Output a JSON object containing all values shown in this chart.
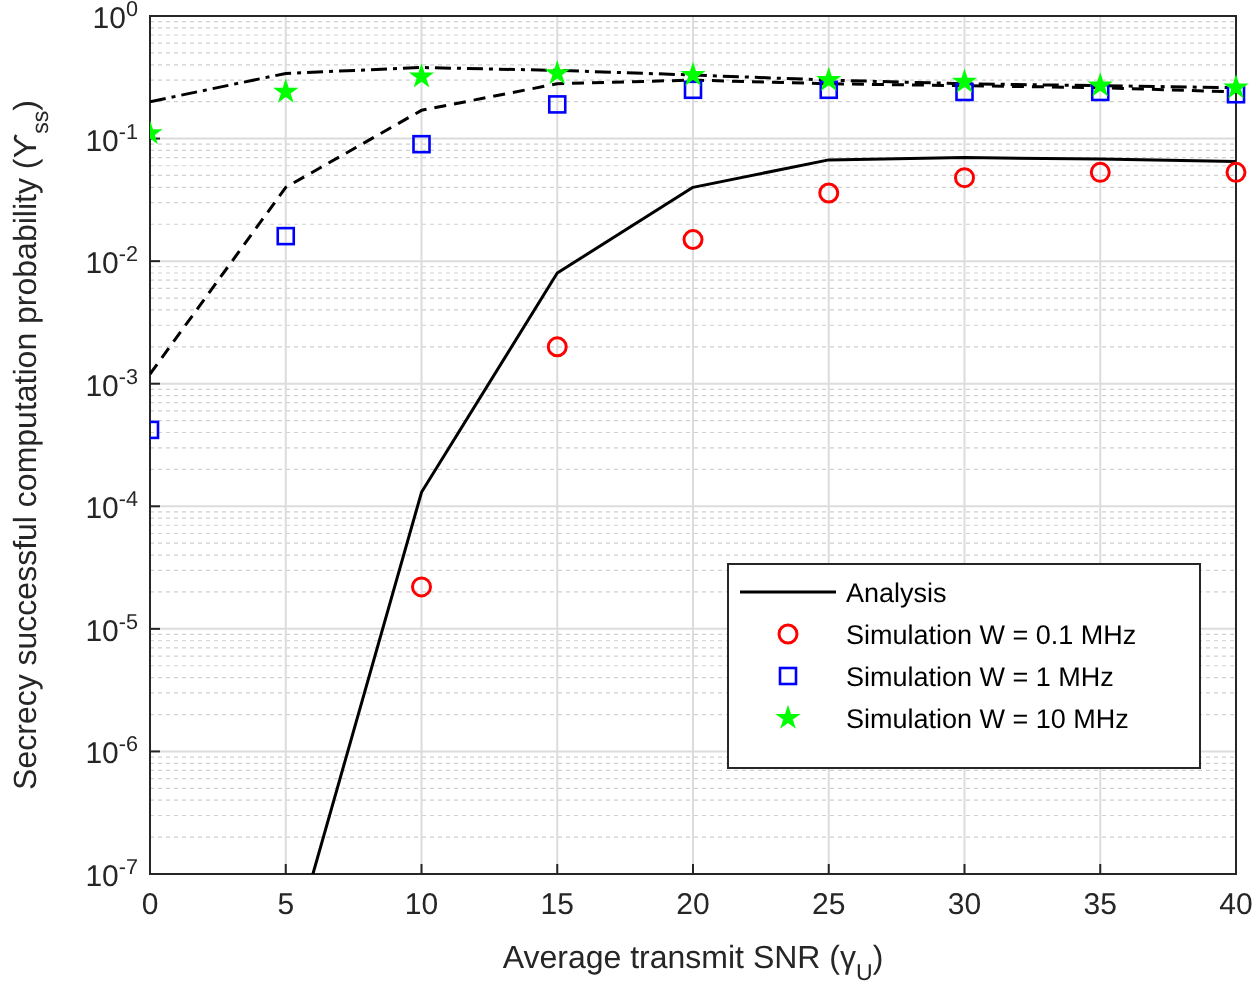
{
  "chart_data": {
    "type": "line",
    "xlabel": "Average transmit SNR (γ$_{U}$)",
    "ylabel": "Secrecy successful computation probability (ϒ$_{ss}$)",
    "log": "y",
    "grid": true,
    "legend": "right",
    "xlim": [
      0,
      40
    ],
    "ylim": [
      1e-07,
      1
    ],
    "xticks": [
      0,
      5,
      10,
      15,
      20,
      25,
      30,
      35,
      40
    ],
    "yticks": [
      {
        "value": 1e-07,
        "label": "10$^{-7}$"
      },
      {
        "value": 1e-06,
        "label": "10$^{-6}$"
      },
      {
        "value": 1e-05,
        "label": "10$^{-5}$"
      },
      {
        "value": 0.0001,
        "label": "10$^{-4}$"
      },
      {
        "value": 0.001,
        "label": "10$^{-3}$"
      },
      {
        "value": 0.01,
        "label": "10$^{-2}$"
      },
      {
        "value": 0.1,
        "label": "10$^{-1}$"
      },
      {
        "value": 1,
        "label": "10$^{0}$"
      }
    ],
    "series": [
      {
        "name": "Analysis",
        "color": "#000000",
        "line_style": "solid",
        "marker": "none",
        "x": [
          6,
          10,
          15,
          20,
          25,
          30,
          35,
          40
        ],
        "values": [
          1e-07,
          0.00013,
          0.008,
          0.04,
          0.067,
          0.07,
          0.068,
          0.065
        ]
      },
      {
        "color": "#000000",
        "line_style": "dashed",
        "marker": "none",
        "x": [
          0,
          5,
          10,
          15,
          20,
          25,
          30,
          35,
          40
        ],
        "values": [
          0.0012,
          0.04,
          0.17,
          0.28,
          0.3,
          0.28,
          0.27,
          0.26,
          0.24
        ]
      },
      {
        "color": "#000000",
        "line_style": "dashdot",
        "marker": "none",
        "x": [
          0,
          5,
          10,
          15,
          20,
          25,
          30,
          35,
          40
        ],
        "values": [
          0.2,
          0.34,
          0.38,
          0.36,
          0.33,
          0.3,
          0.28,
          0.27,
          0.26
        ]
      },
      {
        "name": "Simulation  W = 0.1 MHz",
        "type": "scatter",
        "color": "#ff0000",
        "marker": "circle",
        "x": [
          10,
          15,
          20,
          25,
          30,
          35,
          40
        ],
        "values": [
          2.2e-05,
          0.002,
          0.015,
          0.036,
          0.048,
          0.053,
          0.053
        ]
      },
      {
        "name": "Simulation  W = 1 MHz",
        "type": "scatter",
        "color": "#0000ff",
        "marker": "square",
        "x": [
          0,
          5,
          10,
          15,
          20,
          25,
          30,
          35,
          40
        ],
        "values": [
          0.00042,
          0.016,
          0.09,
          0.19,
          0.25,
          0.25,
          0.24,
          0.24,
          0.23
        ]
      },
      {
        "name": "Simulation  W = 10 MHz",
        "type": "scatter",
        "color": "#00ff00",
        "marker": "star",
        "x": [
          0,
          5,
          10,
          15,
          20,
          25,
          30,
          35,
          40
        ],
        "values": [
          0.11,
          0.24,
          0.32,
          0.34,
          0.33,
          0.3,
          0.29,
          0.27,
          0.26
        ]
      }
    ]
  }
}
